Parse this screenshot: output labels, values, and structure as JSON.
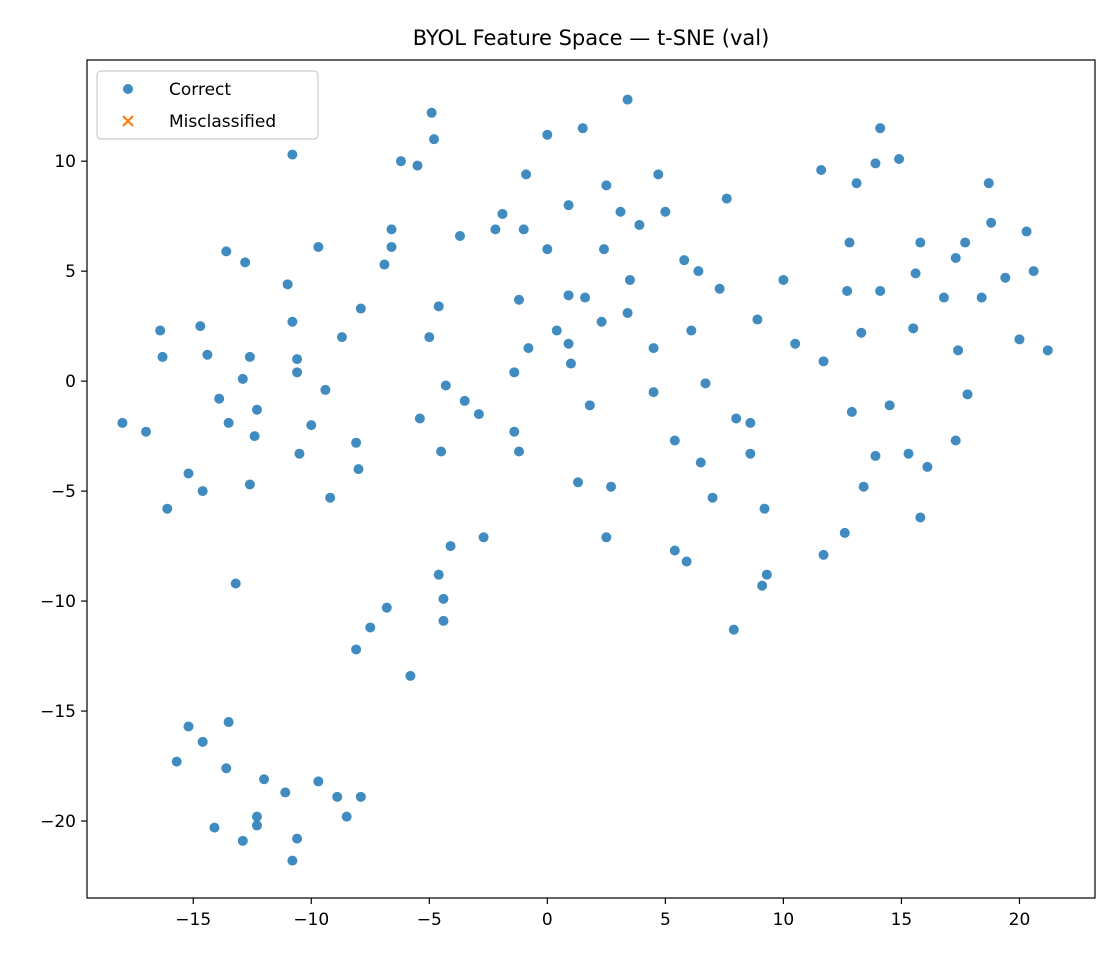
{
  "chart_data": {
    "type": "scatter",
    "title": "BYOL Feature Space — t-SNE (val)",
    "xlabel": "",
    "ylabel": "",
    "xlim": [
      -19.5,
      23.2
    ],
    "ylim": [
      -23.5,
      14.6
    ],
    "x_ticks": [
      -15,
      -10,
      -5,
      0,
      5,
      10,
      15,
      20
    ],
    "y_ticks": [
      -20,
      -15,
      -10,
      -5,
      0,
      5,
      10
    ],
    "grid": false,
    "legend_position": "top-left",
    "series": [
      {
        "name": "Correct",
        "marker": "circle",
        "color": "#1f77b4",
        "points": [
          [
            -18.0,
            -1.9
          ],
          [
            -17.0,
            -2.3
          ],
          [
            -16.4,
            2.3
          ],
          [
            -16.3,
            1.1
          ],
          [
            -16.1,
            -5.8
          ],
          [
            -15.2,
            -4.2
          ],
          [
            -14.7,
            2.5
          ],
          [
            -14.6,
            -5.0
          ],
          [
            -14.4,
            1.2
          ],
          [
            -13.9,
            -0.8
          ],
          [
            -13.6,
            5.9
          ],
          [
            -13.5,
            -1.9
          ],
          [
            -13.2,
            -9.2
          ],
          [
            -12.9,
            0.1
          ],
          [
            -12.8,
            5.4
          ],
          [
            -12.6,
            1.1
          ],
          [
            -12.6,
            -4.7
          ],
          [
            -12.4,
            -2.5
          ],
          [
            -12.3,
            -1.3
          ],
          [
            -11.0,
            4.4
          ],
          [
            -10.8,
            10.3
          ],
          [
            -10.8,
            2.7
          ],
          [
            -10.6,
            1.0
          ],
          [
            -10.6,
            0.4
          ],
          [
            -10.5,
            -3.3
          ],
          [
            -10.0,
            -2.0
          ],
          [
            -9.7,
            6.1
          ],
          [
            -9.4,
            -0.4
          ],
          [
            -9.2,
            -5.3
          ],
          [
            -8.7,
            2.0
          ],
          [
            -8.1,
            -2.8
          ],
          [
            -8.0,
            -4.0
          ],
          [
            -7.9,
            3.3
          ],
          [
            -6.9,
            5.3
          ],
          [
            -6.6,
            6.9
          ],
          [
            -6.6,
            6.1
          ],
          [
            -6.2,
            10.0
          ],
          [
            -5.5,
            9.8
          ],
          [
            -5.4,
            -1.7
          ],
          [
            -4.9,
            12.2
          ],
          [
            -4.8,
            11.0
          ],
          [
            -4.6,
            3.4
          ],
          [
            -5.0,
            2.0
          ],
          [
            -4.5,
            -3.2
          ],
          [
            -4.3,
            -0.2
          ],
          [
            -3.7,
            6.6
          ],
          [
            -3.5,
            -0.9
          ],
          [
            -2.9,
            -1.5
          ],
          [
            -2.2,
            6.9
          ],
          [
            -1.9,
            7.6
          ],
          [
            -1.4,
            -2.3
          ],
          [
            -1.4,
            0.4
          ],
          [
            -1.2,
            3.7
          ],
          [
            -1.2,
            -3.2
          ],
          [
            -1.0,
            6.9
          ],
          [
            -0.9,
            9.4
          ],
          [
            -0.8,
            1.5
          ],
          [
            0.0,
            11.2
          ],
          [
            0.0,
            6.0
          ],
          [
            0.4,
            2.3
          ],
          [
            0.9,
            8.0
          ],
          [
            0.9,
            3.9
          ],
          [
            0.9,
            1.7
          ],
          [
            1.0,
            0.8
          ],
          [
            1.3,
            -4.6
          ],
          [
            1.5,
            11.5
          ],
          [
            1.6,
            3.8
          ],
          [
            1.8,
            -1.1
          ],
          [
            2.3,
            2.7
          ],
          [
            2.4,
            6.0
          ],
          [
            2.5,
            8.9
          ],
          [
            2.7,
            -4.8
          ],
          [
            3.1,
            7.7
          ],
          [
            3.4,
            12.8
          ],
          [
            3.4,
            3.1
          ],
          [
            3.5,
            4.6
          ],
          [
            3.9,
            7.1
          ],
          [
            4.5,
            1.5
          ],
          [
            4.5,
            -0.5
          ],
          [
            4.7,
            9.4
          ],
          [
            5.0,
            7.7
          ],
          [
            5.4,
            -2.7
          ],
          [
            5.8,
            5.5
          ],
          [
            6.1,
            2.3
          ],
          [
            6.4,
            5.0
          ],
          [
            6.5,
            -3.7
          ],
          [
            6.7,
            -0.1
          ],
          [
            7.0,
            -5.3
          ],
          [
            7.3,
            4.2
          ],
          [
            7.6,
            8.3
          ],
          [
            8.0,
            -1.7
          ],
          [
            8.6,
            -1.9
          ],
          [
            8.6,
            -3.3
          ],
          [
            8.9,
            2.8
          ],
          [
            9.2,
            -5.8
          ],
          [
            10.0,
            4.6
          ],
          [
            10.5,
            1.7
          ],
          [
            11.6,
            9.6
          ],
          [
            11.7,
            0.9
          ],
          [
            12.7,
            4.1
          ],
          [
            12.8,
            6.3
          ],
          [
            12.9,
            -1.4
          ],
          [
            13.1,
            9.0
          ],
          [
            13.3,
            2.2
          ],
          [
            13.9,
            9.9
          ],
          [
            14.1,
            4.1
          ],
          [
            14.1,
            11.5
          ],
          [
            14.5,
            -1.1
          ],
          [
            14.9,
            10.1
          ],
          [
            15.3,
            -3.3
          ],
          [
            15.5,
            2.4
          ],
          [
            15.6,
            4.9
          ],
          [
            15.8,
            6.3
          ],
          [
            16.1,
            -3.9
          ],
          [
            16.8,
            3.8
          ],
          [
            17.3,
            5.6
          ],
          [
            17.4,
            1.4
          ],
          [
            17.7,
            6.3
          ],
          [
            17.8,
            -0.6
          ],
          [
            18.4,
            3.8
          ],
          [
            18.7,
            9.0
          ],
          [
            18.8,
            7.2
          ],
          [
            19.4,
            4.7
          ],
          [
            20.0,
            1.9
          ],
          [
            20.3,
            6.8
          ],
          [
            20.6,
            5.0
          ],
          [
            21.2,
            1.4
          ],
          [
            -4.6,
            -8.8
          ],
          [
            -4.4,
            -9.9
          ],
          [
            -4.4,
            -10.9
          ],
          [
            -4.1,
            -7.5
          ],
          [
            -2.7,
            -7.1
          ],
          [
            -5.8,
            -13.4
          ],
          [
            -6.8,
            -10.3
          ],
          [
            -7.5,
            -11.2
          ],
          [
            -8.1,
            -12.2
          ],
          [
            2.5,
            -7.1
          ],
          [
            5.4,
            -7.7
          ],
          [
            5.9,
            -8.2
          ],
          [
            7.9,
            -11.3
          ],
          [
            9.1,
            -9.3
          ],
          [
            9.3,
            -8.8
          ],
          [
            11.7,
            -7.9
          ],
          [
            12.6,
            -6.9
          ],
          [
            13.4,
            -4.8
          ],
          [
            13.9,
            -3.4
          ],
          [
            15.8,
            -6.2
          ],
          [
            17.3,
            -2.7
          ],
          [
            -15.2,
            -15.7
          ],
          [
            -14.6,
            -16.4
          ],
          [
            -15.7,
            -17.3
          ],
          [
            -13.5,
            -15.5
          ],
          [
            -13.6,
            -17.6
          ],
          [
            -12.0,
            -18.1
          ],
          [
            -11.1,
            -18.7
          ],
          [
            -9.7,
            -18.2
          ],
          [
            -8.9,
            -18.9
          ],
          [
            -7.9,
            -18.9
          ],
          [
            -14.1,
            -20.3
          ],
          [
            -12.9,
            -20.9
          ],
          [
            -12.3,
            -19.8
          ],
          [
            -12.3,
            -20.2
          ],
          [
            -10.6,
            -20.8
          ],
          [
            -10.8,
            -21.8
          ],
          [
            -8.5,
            -19.8
          ]
        ]
      },
      {
        "name": "Misclassified",
        "marker": "x",
        "color": "#ff7f0e",
        "points": []
      }
    ]
  }
}
